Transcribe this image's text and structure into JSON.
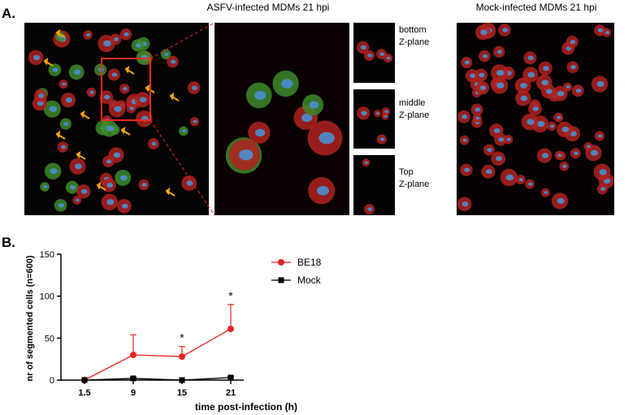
{
  "panel_a": {
    "label": "A.",
    "infected_title": "ASFV-infected MDMs 21 hpi",
    "mock_title": "Mock-infected MDMs 21 hpi",
    "z_planes": [
      "bottom Z-plane",
      "middle Z-plane",
      "Top Z-plane"
    ]
  },
  "panel_b": {
    "label": "B.",
    "chart_data": {
      "type": "line",
      "x_label": "time post-infection (h)",
      "y_label": "nr of segmented cells (n=600)",
      "categories": [
        "1.5",
        "9",
        "15",
        "21"
      ],
      "ylim": [
        0,
        150
      ],
      "yticks": [
        0,
        50,
        100,
        150
      ],
      "series": [
        {
          "name": "BE18",
          "color": "#e8231e",
          "marker": "circle",
          "values": [
            0,
            30,
            28,
            61
          ],
          "errors": [
            0,
            24,
            12,
            29
          ]
        },
        {
          "name": "Mock",
          "color": "#000000",
          "marker": "square",
          "values": [
            0,
            2,
            0,
            3
          ],
          "errors": [
            0,
            1,
            0,
            1
          ]
        }
      ],
      "annotations": [
        {
          "text": "*",
          "x": "15"
        },
        {
          "text": "*",
          "x": "21"
        }
      ]
    }
  }
}
